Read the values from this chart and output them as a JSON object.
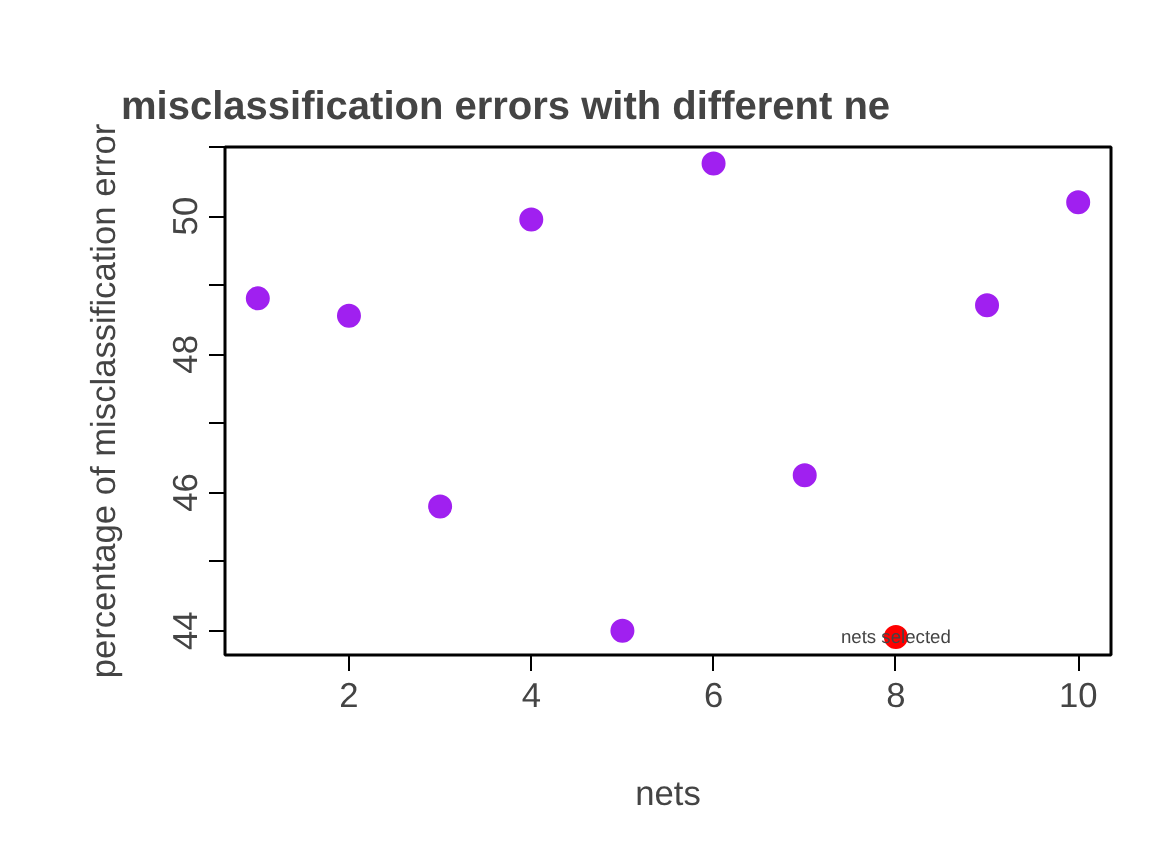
{
  "chart_data": {
    "type": "scatter",
    "title": "misclassification errors with different ne",
    "xlabel": "nets",
    "ylabel": "percentage of misclassification error",
    "series": [
      {
        "x": [
          1,
          2,
          3,
          4,
          5,
          6,
          7,
          9,
          10
        ],
        "values": [
          48.81,
          48.56,
          45.8,
          49.95,
          44.0,
          50.76,
          46.25,
          48.71,
          50.2
        ],
        "color": "#a020f0"
      },
      {
        "x": [
          8
        ],
        "values": [
          43.91
        ],
        "color": "#ff0000"
      }
    ],
    "annotations": [
      {
        "text": "nets selected",
        "x": 8,
        "y": 43.91
      }
    ],
    "xlim": [
      0.64,
      10.36
    ],
    "xticks": [
      2,
      4,
      6,
      8,
      10
    ],
    "ylim": [
      43.65,
      51.0
    ],
    "yticks": [
      44,
      {
        "value": 45,
        "label": null
      },
      46,
      {
        "value": 47,
        "label": null
      },
      48,
      {
        "value": 49,
        "label": null
      },
      50,
      {
        "value": 51,
        "label": null
      }
    ],
    "marker": "circle",
    "grid": false
  }
}
